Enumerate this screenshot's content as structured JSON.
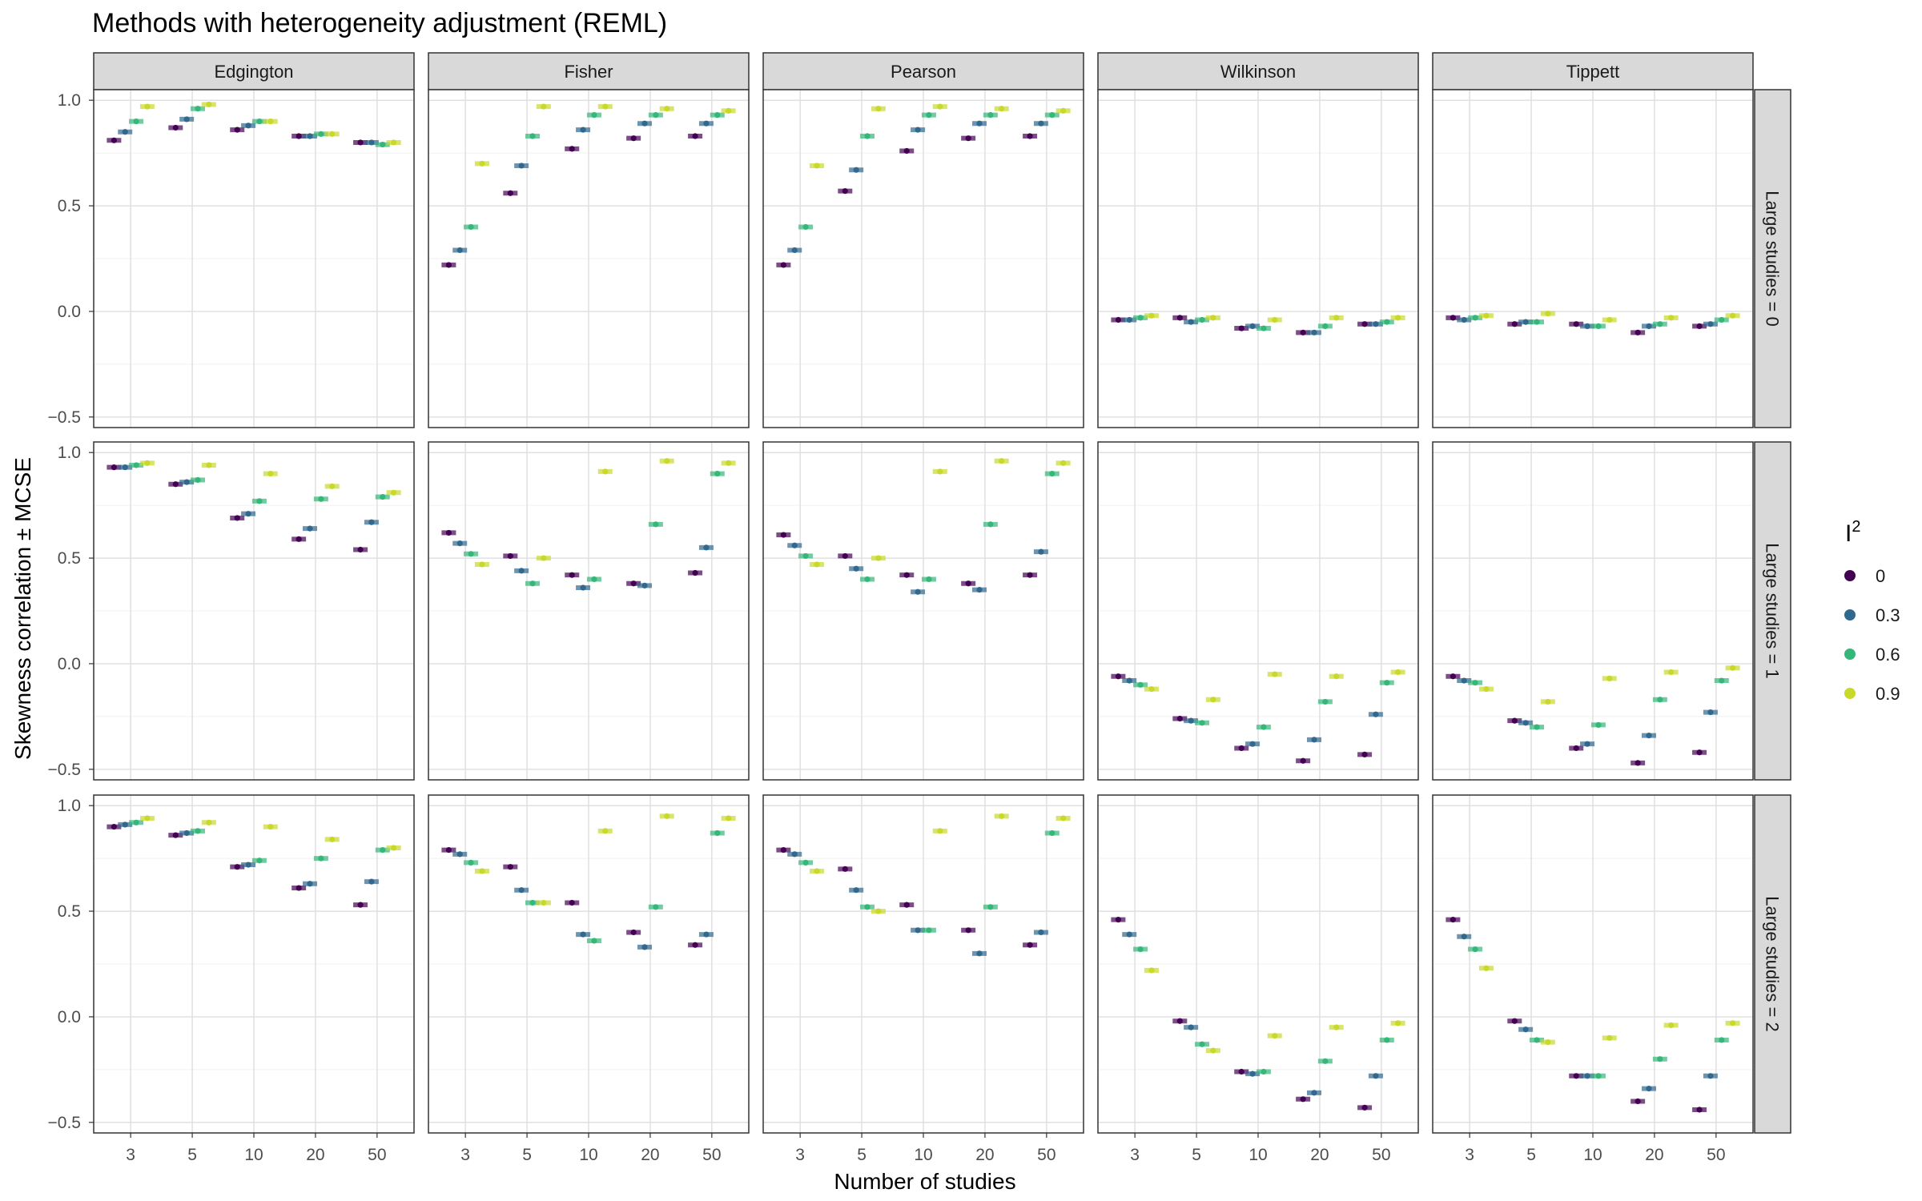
{
  "chart_data": {
    "type": "scatter",
    "title": "Methods with heterogeneity adjustment (REML)",
    "xlabel": "Number of studies",
    "ylabel": "Skewness correlation ± MCSE",
    "x_categories": [
      "3",
      "5",
      "10",
      "20",
      "50"
    ],
    "ylim": [
      -0.55,
      1.05
    ],
    "y_ticks": [
      -0.5,
      0.0,
      0.5,
      1.0
    ],
    "y_tick_labels": [
      "−0.5",
      "0.0",
      "0.5",
      "1.0"
    ],
    "grid": true,
    "columns": [
      "Edgington",
      "Fisher",
      "Pearson",
      "Wilkinson",
      "Tippett"
    ],
    "rows": [
      "Large studies = 0",
      "Large studies = 1",
      "Large studies = 2"
    ],
    "legend": {
      "title": "I",
      "title_superscript": "2",
      "position": "right",
      "entries": [
        {
          "label": "0",
          "color": "#440154"
        },
        {
          "label": "0.3",
          "color": "#31688E"
        },
        {
          "label": "0.6",
          "color": "#35B779"
        },
        {
          "label": "0.9",
          "color": "#C8D92B"
        }
      ]
    },
    "series_order": [
      "0",
      "0.3",
      "0.6",
      "0.9"
    ],
    "panels": [
      [
        [
          [
            0.81,
            0.85,
            0.9,
            0.97
          ],
          [
            0.87,
            0.91,
            0.96,
            0.98
          ],
          [
            0.86,
            0.88,
            0.9,
            0.9
          ],
          [
            0.83,
            0.83,
            0.84,
            0.84
          ],
          [
            0.8,
            0.8,
            0.79,
            0.8
          ]
        ],
        [
          [
            0.22,
            0.29,
            0.4,
            0.7
          ],
          [
            0.56,
            0.69,
            0.83,
            0.97
          ],
          [
            0.77,
            0.86,
            0.93,
            0.97
          ],
          [
            0.82,
            0.89,
            0.93,
            0.96
          ],
          [
            0.83,
            0.89,
            0.93,
            0.95
          ]
        ],
        [
          [
            0.22,
            0.29,
            0.4,
            0.69
          ],
          [
            0.57,
            0.67,
            0.83,
            0.96
          ],
          [
            0.76,
            0.86,
            0.93,
            0.97
          ],
          [
            0.82,
            0.89,
            0.93,
            0.96
          ],
          [
            0.83,
            0.89,
            0.93,
            0.95
          ]
        ],
        [
          [
            -0.04,
            -0.04,
            -0.03,
            -0.02
          ],
          [
            -0.03,
            -0.05,
            -0.04,
            -0.03
          ],
          [
            -0.08,
            -0.07,
            -0.08,
            -0.04
          ],
          [
            -0.1,
            -0.1,
            -0.07,
            -0.03
          ],
          [
            -0.06,
            -0.06,
            -0.05,
            -0.03
          ]
        ],
        [
          [
            -0.03,
            -0.04,
            -0.03,
            -0.02
          ],
          [
            -0.06,
            -0.05,
            -0.05,
            -0.01
          ],
          [
            -0.06,
            -0.07,
            -0.07,
            -0.04
          ],
          [
            -0.1,
            -0.07,
            -0.06,
            -0.03
          ],
          [
            -0.07,
            -0.06,
            -0.04,
            -0.02
          ]
        ]
      ],
      [
        [
          [
            0.93,
            0.93,
            0.94,
            0.95
          ],
          [
            0.85,
            0.86,
            0.87,
            0.94
          ],
          [
            0.69,
            0.71,
            0.77,
            0.9
          ],
          [
            0.59,
            0.64,
            0.78,
            0.84
          ],
          [
            0.54,
            0.67,
            0.79,
            0.81
          ]
        ],
        [
          [
            0.62,
            0.57,
            0.52,
            0.47
          ],
          [
            0.51,
            0.44,
            0.38,
            0.5
          ],
          [
            0.42,
            0.36,
            0.4,
            0.91
          ],
          [
            0.38,
            0.37,
            0.66,
            0.96
          ],
          [
            0.43,
            0.55,
            0.9,
            0.95
          ]
        ],
        [
          [
            0.61,
            0.56,
            0.51,
            0.47
          ],
          [
            0.51,
            0.45,
            0.4,
            0.5
          ],
          [
            0.42,
            0.34,
            0.4,
            0.91
          ],
          [
            0.38,
            0.35,
            0.66,
            0.96
          ],
          [
            0.42,
            0.53,
            0.9,
            0.95
          ]
        ],
        [
          [
            -0.06,
            -0.08,
            -0.1,
            -0.12
          ],
          [
            -0.26,
            -0.27,
            -0.28,
            -0.17
          ],
          [
            -0.4,
            -0.38,
            -0.3,
            -0.05
          ],
          [
            -0.46,
            -0.36,
            -0.18,
            -0.06
          ],
          [
            -0.43,
            -0.24,
            -0.09,
            -0.04
          ]
        ],
        [
          [
            -0.06,
            -0.08,
            -0.09,
            -0.12
          ],
          [
            -0.27,
            -0.28,
            -0.3,
            -0.18
          ],
          [
            -0.4,
            -0.38,
            -0.29,
            -0.07
          ],
          [
            -0.47,
            -0.34,
            -0.17,
            -0.04
          ],
          [
            -0.42,
            -0.23,
            -0.08,
            -0.02
          ]
        ]
      ],
      [
        [
          [
            0.9,
            0.91,
            0.92,
            0.94
          ],
          [
            0.86,
            0.87,
            0.88,
            0.92
          ],
          [
            0.71,
            0.72,
            0.74,
            0.9
          ],
          [
            0.61,
            0.63,
            0.75,
            0.84
          ],
          [
            0.53,
            0.64,
            0.79,
            0.8
          ]
        ],
        [
          [
            0.79,
            0.77,
            0.73,
            0.69
          ],
          [
            0.71,
            0.6,
            0.54,
            0.54
          ],
          [
            0.54,
            0.39,
            0.36,
            0.88
          ],
          [
            0.4,
            0.33,
            0.52,
            0.95
          ],
          [
            0.34,
            0.39,
            0.87,
            0.94
          ]
        ],
        [
          [
            0.79,
            0.77,
            0.73,
            0.69
          ],
          [
            0.7,
            0.6,
            0.52,
            0.5
          ],
          [
            0.53,
            0.41,
            0.41,
            0.88
          ],
          [
            0.41,
            0.3,
            0.52,
            0.95
          ],
          [
            0.34,
            0.4,
            0.87,
            0.94
          ]
        ],
        [
          [
            0.46,
            0.39,
            0.32,
            0.22
          ],
          [
            -0.02,
            -0.05,
            -0.13,
            -0.16
          ],
          [
            -0.26,
            -0.27,
            -0.26,
            -0.09
          ],
          [
            -0.39,
            -0.36,
            -0.21,
            -0.05
          ],
          [
            -0.43,
            -0.28,
            -0.11,
            -0.03
          ]
        ],
        [
          [
            0.46,
            0.38,
            0.32,
            0.23
          ],
          [
            -0.02,
            -0.06,
            -0.11,
            -0.12
          ],
          [
            -0.28,
            -0.28,
            -0.28,
            -0.1
          ],
          [
            -0.4,
            -0.34,
            -0.2,
            -0.04
          ],
          [
            -0.44,
            -0.28,
            -0.11,
            -0.03
          ]
        ]
      ]
    ]
  }
}
